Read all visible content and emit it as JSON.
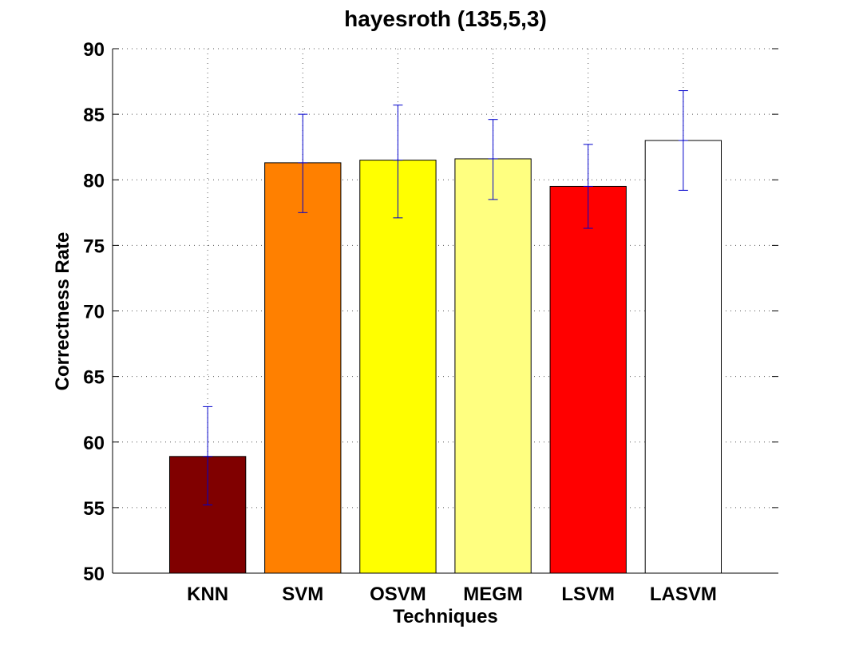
{
  "chart_data": {
    "type": "bar",
    "title": "hayesroth (135,5,3)",
    "xlabel": "Techniques",
    "ylabel": "Correctness Rate",
    "ylim": [
      50,
      90
    ],
    "yticks": [
      50,
      55,
      60,
      65,
      70,
      75,
      80,
      85,
      90
    ],
    "grid": true,
    "categories": [
      "KNN",
      "SVM",
      "OSVM",
      "MEGM",
      "LSVM",
      "LASVM"
    ],
    "values": [
      58.9,
      81.3,
      81.5,
      81.6,
      79.5,
      83.0
    ],
    "error_low": [
      55.2,
      77.5,
      77.1,
      78.5,
      76.3,
      79.2
    ],
    "error_high": [
      62.7,
      85.0,
      85.7,
      84.6,
      82.7,
      86.8
    ],
    "colors": [
      "#800000",
      "#FF8000",
      "#FFFF00",
      "#FFFF80",
      "#FF0000",
      "#FFFFFF"
    ],
    "error_color": "#0000CC"
  }
}
